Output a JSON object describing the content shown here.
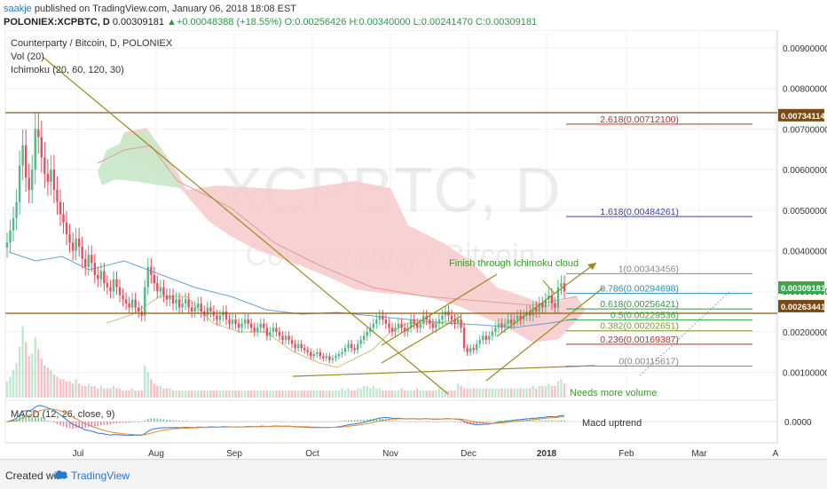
{
  "header": {
    "user": "saakje",
    "published": "published on TradingView.com, January 06, 2018 18:08 EST",
    "symbol": "POLONIEX:XCPBTC, D",
    "price": "0.00309181",
    "arrow": "▲",
    "change": "+0.00048388 (+18.55%)",
    "ohlc": "O:0.00256426 H:0.00340000 L:0.00241470 C:0.00309181"
  },
  "chart_data": {
    "type": "candlestick",
    "title": "Counterparty / Bitcoin, D, POLONIEX",
    "watermark_main": "XCPBTC, D",
    "watermark_sub": "Counterparty / Bitcoin",
    "indicator_labels": [
      "Vol (20)",
      "Ichimoku (20, 60, 120, 30)"
    ],
    "macd_label": "MACD (12, 26, close, 9)",
    "y_axis_ticks": [
      "0.00900000",
      "0.00800000",
      "0.00700000",
      "0.00600000",
      "0.00500000",
      "0.00400000",
      "0.00300000",
      "0.00200000",
      "0.00100000"
    ],
    "y_axis_ticks_values": [
      0.009,
      0.008,
      0.007,
      0.006,
      0.005,
      0.004,
      0.003,
      0.002,
      0.001
    ],
    "macd_tick": "0.0000",
    "ylim": [
      0.0004,
      0.0095
    ],
    "x_axis_labels": [
      "Jul",
      "Aug",
      "Sep",
      "Oct",
      "Nov",
      "Dec",
      "2018",
      "Feb",
      "Mar",
      "A"
    ],
    "price_tags": [
      {
        "label": "0.00734114",
        "value": 0.00734114,
        "style": "brown"
      },
      {
        "label": "0.00309181",
        "value": 0.00309181,
        "style": "green"
      },
      {
        "label": "0.00263441",
        "value": 0.00263441,
        "style": "brown"
      }
    ],
    "horizontal_lines": [
      {
        "value": 0.00734114,
        "color": "#8b5a1a"
      },
      {
        "value": 0.00263441,
        "color": "#8b5a1a"
      }
    ],
    "fib_levels": [
      {
        "label": "2.618(0.00712100)",
        "value": 0.007121,
        "color": "#c62828"
      },
      {
        "label": "1.618(0.00484261)",
        "value": 0.00484261,
        "color": "#3b3fa8"
      },
      {
        "label": "1(0.00343456)",
        "value": 0.00343456,
        "color": "#888888"
      },
      {
        "label": "0.786(0.00294698)",
        "value": 0.00294698,
        "color": "#2a8fb8"
      },
      {
        "label": "0.618(0.00256421)",
        "value": 0.00256421,
        "color": "#2b9a48"
      },
      {
        "label": "0.5(0.00229536)",
        "value": 0.00229536,
        "color": "#35a845"
      },
      {
        "label": "0.382(0.00202651)",
        "value": 0.00202651,
        "color": "#7a9a2a"
      },
      {
        "label": "0.236(0.00169387)",
        "value": 0.00169387,
        "color": "#c62828"
      },
      {
        "label": "0(0.00115617)",
        "value": 0.00115617,
        "color": "#888888"
      }
    ],
    "annotations": [
      {
        "text": "Finish through Ichimoku cloud",
        "color": "#3c9a2a"
      },
      {
        "text": "Needs more volume",
        "color": "#3c9a2a"
      },
      {
        "text": "Macd uptrend",
        "color": "#333333"
      }
    ],
    "closes": [
      0.0042,
      0.0045,
      0.0048,
      0.0052,
      0.0061,
      0.0066,
      0.0058,
      0.0055,
      0.006,
      0.007,
      0.0068,
      0.0063,
      0.0059,
      0.0057,
      0.006,
      0.0055,
      0.0052,
      0.0049,
      0.0047,
      0.0044,
      0.0042,
      0.004,
      0.0043,
      0.0041,
      0.0038,
      0.0036,
      0.0039,
      0.0037,
      0.0034,
      0.0033,
      0.0035,
      0.0032,
      0.0031,
      0.003,
      0.0033,
      0.0031,
      0.0029,
      0.0028,
      0.0027,
      0.0026,
      0.0028,
      0.0026,
      0.0025,
      0.0024,
      0.0031,
      0.0036,
      0.0034,
      0.0032,
      0.003,
      0.0031,
      0.0029,
      0.0028,
      0.0029,
      0.0027,
      0.0028,
      0.0026,
      0.0027,
      0.0028,
      0.0026,
      0.0025,
      0.0026,
      0.0027,
      0.0025,
      0.0024,
      0.0026,
      0.0025,
      0.0024,
      0.0023,
      0.0024,
      0.0025,
      0.0023,
      0.0022,
      0.0023,
      0.0022,
      0.0021,
      0.0022,
      0.0023,
      0.0022,
      0.0021,
      0.002,
      0.0021,
      0.0022,
      0.0021,
      0.0019,
      0.002,
      0.0021,
      0.002,
      0.0019,
      0.0018,
      0.0019,
      0.0018,
      0.0017,
      0.0016,
      0.0017,
      0.0016,
      0.00155,
      0.0015,
      0.0014,
      0.00145,
      0.0015,
      0.0014,
      0.00135,
      0.0014,
      0.0013,
      0.00135,
      0.0014,
      0.00145,
      0.0015,
      0.0016,
      0.0017,
      0.0016,
      0.00155,
      0.0017,
      0.0018,
      0.0019,
      0.002,
      0.0021,
      0.0022,
      0.0023,
      0.0024,
      0.0023,
      0.0022,
      0.0021,
      0.002,
      0.0021,
      0.0022,
      0.0021,
      0.002,
      0.0021,
      0.0023,
      0.0022,
      0.0021,
      0.0022,
      0.0024,
      0.0023,
      0.0022,
      0.0021,
      0.0022,
      0.0023,
      0.0024,
      0.0025,
      0.0024,
      0.0023,
      0.0022,
      0.0023,
      0.0021,
      0.0016,
      0.0015,
      0.0016,
      0.00155,
      0.0017,
      0.0018,
      0.0019,
      0.0018,
      0.0019,
      0.002,
      0.0021,
      0.0022,
      0.0021,
      0.0022,
      0.0023,
      0.0022,
      0.0023,
      0.0024,
      0.0023,
      0.0024,
      0.0025,
      0.0024,
      0.0026,
      0.0025,
      0.0027,
      0.0026,
      0.0028,
      0.0029,
      0.0027,
      0.0026,
      0.0031,
      0.0032,
      0.003
    ],
    "volumes": [
      0.7,
      0.9,
      1.2,
      1.5,
      2.2,
      3.1,
      2.4,
      1.8,
      1.9,
      2.6,
      2.1,
      1.7,
      1.4,
      1.3,
      1.2,
      1.0,
      0.9,
      0.8,
      0.8,
      0.7,
      0.7,
      0.6,
      0.8,
      0.6,
      0.5,
      0.5,
      0.6,
      0.5,
      0.5,
      0.4,
      0.5,
      0.4,
      0.4,
      0.4,
      0.5,
      0.4,
      0.4,
      0.3,
      0.3,
      0.3,
      0.4,
      0.3,
      0.3,
      0.3,
      1.4,
      1.1,
      0.8,
      0.6,
      0.5,
      0.5,
      0.4,
      0.4,
      0.4,
      0.3,
      0.3,
      0.3,
      0.3,
      0.3,
      0.3,
      0.3,
      0.3,
      0.3,
      0.3,
      0.3,
      0.3,
      0.3,
      0.3,
      0.3,
      0.3,
      0.3,
      0.3,
      0.3,
      0.3,
      0.3,
      0.3,
      0.3,
      0.3,
      0.3,
      0.3,
      0.3,
      0.3,
      0.3,
      0.3,
      0.3,
      0.3,
      0.3,
      0.3,
      0.3,
      0.3,
      0.3,
      0.3,
      0.3,
      0.3,
      0.3,
      0.3,
      0.3,
      0.3,
      0.3,
      0.3,
      0.3,
      0.3,
      0.3,
      0.3,
      0.3,
      0.3,
      0.3,
      0.3,
      0.4,
      0.3,
      0.4,
      0.3,
      0.3,
      0.4,
      0.4,
      0.5,
      0.5,
      0.4,
      0.5,
      0.4,
      0.4,
      0.3,
      0.3,
      0.3,
      0.3,
      0.3,
      0.3,
      0.4,
      0.3,
      0.3,
      0.3,
      0.3,
      0.4,
      0.3,
      0.3,
      0.3,
      0.3,
      0.3,
      0.3,
      0.4,
      0.3,
      0.3,
      0.3,
      0.3,
      0.3,
      0.6,
      0.5,
      0.4,
      0.4,
      0.4,
      0.4,
      0.4,
      0.4,
      0.4,
      0.4,
      0.4,
      0.4,
      0.4,
      0.4,
      0.4,
      0.4,
      0.4,
      0.4,
      0.4,
      0.4,
      0.4,
      0.4,
      0.4,
      0.4,
      0.5,
      0.4,
      0.5,
      0.5,
      0.5,
      0.6,
      0.5,
      0.5,
      0.7,
      0.8,
      0.6
    ],
    "colors": {
      "up": "#53b987",
      "down": "#eb4d5c",
      "cloud_bull": "#c9e8c9",
      "cloud_bear": "#f7caca",
      "trend": "#9a8a1e",
      "brown": "#8b5a1a",
      "green_tag": "#3aa64e",
      "macd": "#2a79c9",
      "signal": "#ef8a2f"
    }
  }
}
